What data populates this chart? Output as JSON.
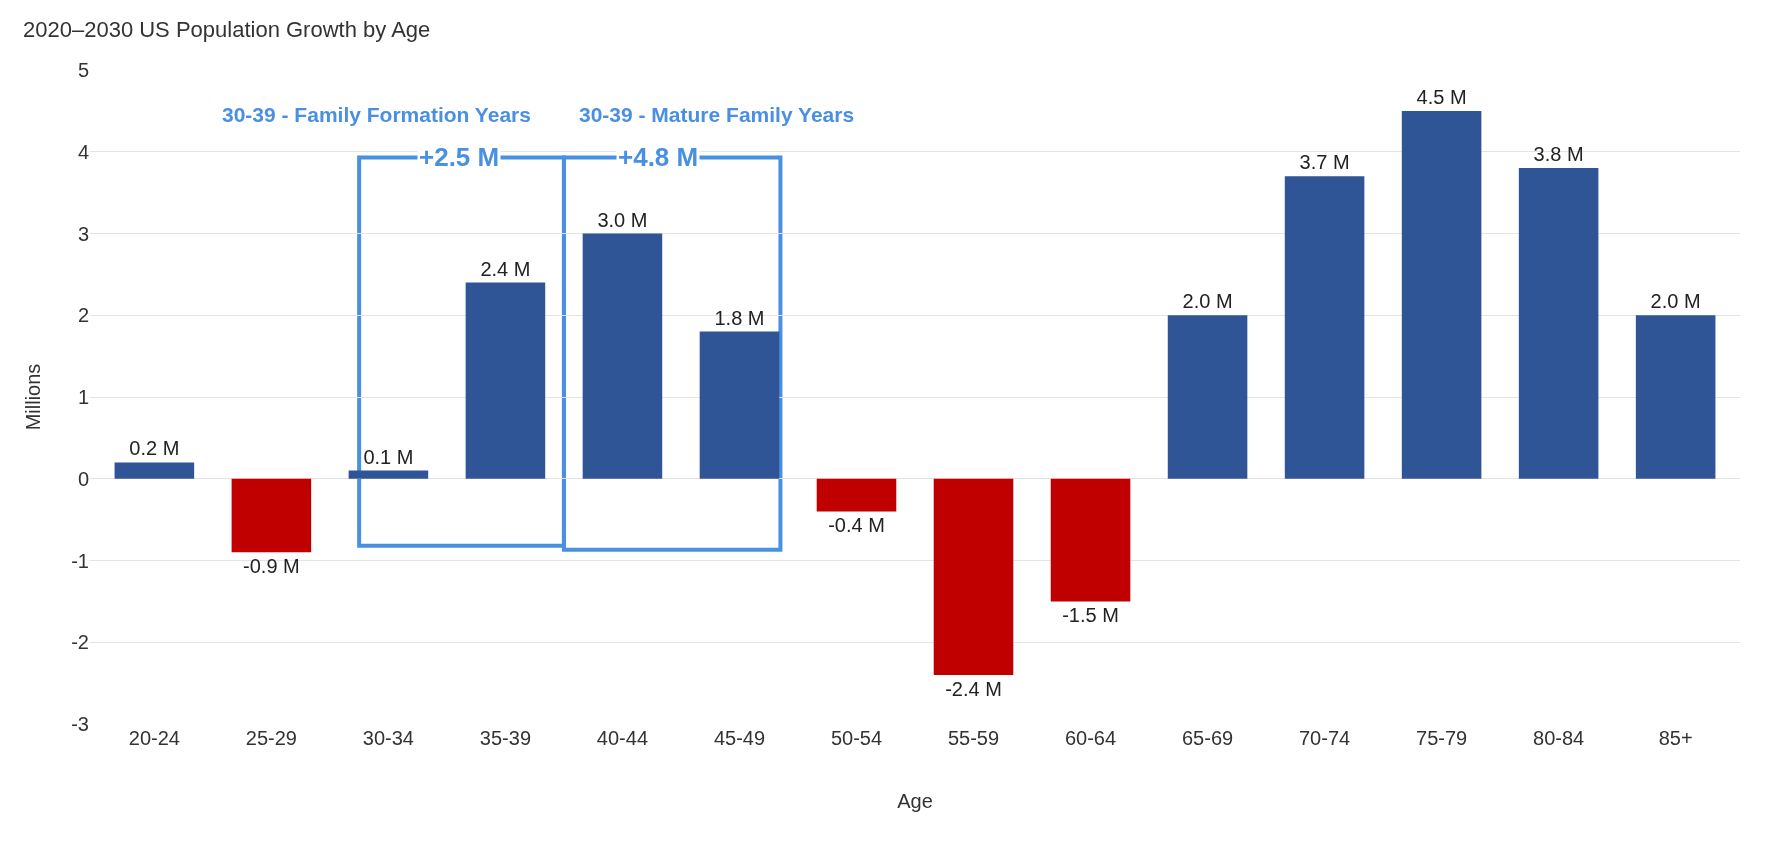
{
  "chart_data": {
    "type": "bar",
    "title": "2020–2030 US Population Growth by Age",
    "xlabel": "Age",
    "ylabel": "Millions",
    "categories": [
      "20-24",
      "25-29",
      "30-34",
      "35-39",
      "40-44",
      "45-49",
      "50-54",
      "55-59",
      "60-64",
      "65-69",
      "70-74",
      "75-79",
      "80-84",
      "85+"
    ],
    "values": [
      0.2,
      -0.9,
      0.1,
      2.4,
      3.0,
      1.8,
      -0.4,
      -2.4,
      -1.5,
      2.0,
      3.7,
      4.5,
      3.8,
      2.0
    ],
    "colors": [
      "#2f5597",
      "#c00000",
      "#2f5597",
      "#2f5597",
      "#2f5597",
      "#2f5597",
      "#c00000",
      "#c00000",
      "#c00000",
      "#2f5597",
      "#2f5597",
      "#2f5597",
      "#2f5597",
      "#2f5597"
    ],
    "value_labels": [
      "0.2 M",
      "-0.9 M",
      "0.1 M",
      "2.4 M",
      "3.0 M",
      "1.8 M",
      "-0.4 M",
      "-2.4 M",
      "-1.5 M",
      "2.0 M",
      "3.7 M",
      "4.5 M",
      "3.8 M",
      "2.0 M"
    ],
    "ylim": [
      -3,
      5
    ],
    "yticks": [
      -3,
      -2,
      -1,
      0,
      1,
      2,
      3,
      4,
      5
    ],
    "grid": "y",
    "annotations": [
      "30-39 - Family Formation Years",
      "30-39 - Mature Family Years",
      "+2.5 M",
      "+4.8 M"
    ]
  }
}
